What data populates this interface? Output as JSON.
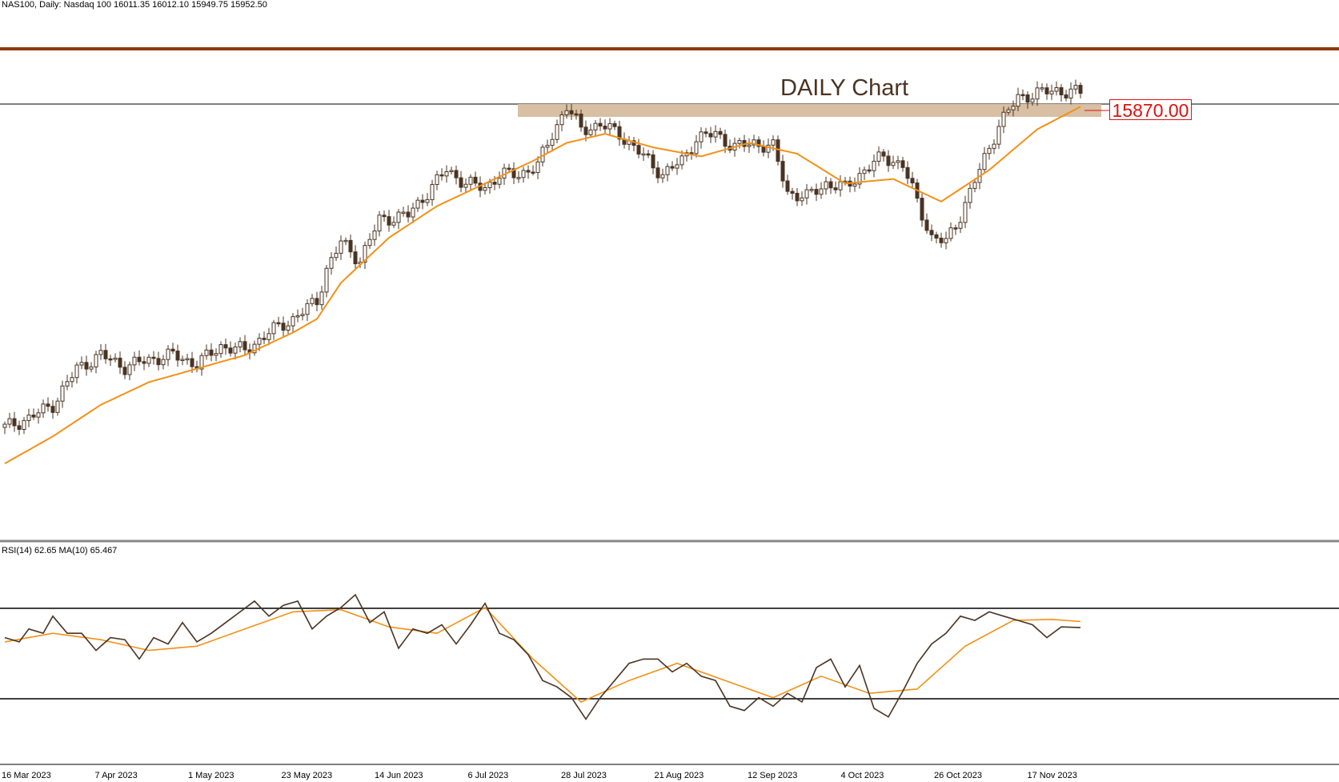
{
  "header": {
    "symbol_line": "NAS100, Daily:  Nasdaq 100  16011.35 16012.10 15949.75 15952.50"
  },
  "title": "DAILY Chart",
  "level": {
    "label": "15870.00",
    "value": 15870
  },
  "rsi": {
    "label": "RSI(14) 62.65 MA(10) 65.467"
  },
  "colors": {
    "resistance_line": "#8b3a0e",
    "zone": "#d9bfa3",
    "moving_average": "#f39016",
    "candle": "#4a3322",
    "level_label": "#e01010"
  },
  "chart_data": [
    {
      "type": "candlestick",
      "title": "DAILY Chart",
      "symbol": "NAS100",
      "timeframe": "Daily",
      "x_labels": [
        "16 Mar 2023",
        "7 Apr 2023",
        "1 May 2023",
        "23 May 2023",
        "14 Jun 2023",
        "6 Jul 2023",
        "28 Jul 2023",
        "21 Aug 2023",
        "12 Sep 2023",
        "4 Oct 2023",
        "26 Oct 2023",
        "17 Nov 2023"
      ],
      "key_level": 15870,
      "ylim": [
        11000,
        16450
      ],
      "close_path": [
        [
          0,
          12250
        ],
        [
          5,
          12350
        ],
        [
          10,
          12500
        ],
        [
          15,
          12900
        ],
        [
          20,
          13050
        ],
        [
          25,
          12920
        ],
        [
          30,
          13000
        ],
        [
          35,
          13050
        ],
        [
          40,
          12950
        ],
        [
          45,
          13150
        ],
        [
          50,
          13100
        ],
        [
          55,
          13300
        ],
        [
          60,
          13450
        ],
        [
          65,
          13650
        ],
        [
          67,
          14000
        ],
        [
          70,
          14300
        ],
        [
          74,
          14100
        ],
        [
          78,
          14550
        ],
        [
          84,
          14600
        ],
        [
          88,
          14850
        ],
        [
          92,
          15100
        ],
        [
          96,
          14950
        ],
        [
          100,
          14900
        ],
        [
          103,
          15050
        ],
        [
          107,
          15050
        ],
        [
          111,
          15150
        ],
        [
          114,
          15500
        ],
        [
          117,
          15800
        ],
        [
          120,
          15550
        ],
        [
          124,
          15600
        ],
        [
          128,
          15500
        ],
        [
          133,
          15250
        ],
        [
          137,
          15050
        ],
        [
          141,
          15200
        ],
        [
          144,
          15450
        ],
        [
          148,
          15500
        ],
        [
          152,
          15350
        ],
        [
          156,
          15400
        ],
        [
          160,
          15350
        ],
        [
          163,
          14850
        ],
        [
          167,
          14800
        ],
        [
          171,
          14950
        ],
        [
          175,
          14900
        ],
        [
          179,
          15100
        ],
        [
          183,
          15250
        ],
        [
          187,
          15150
        ],
        [
          190,
          14750
        ],
        [
          193,
          14350
        ],
        [
          196,
          14300
        ],
        [
          199,
          14600
        ],
        [
          203,
          15100
        ],
        [
          207,
          15600
        ],
        [
          211,
          15900
        ],
        [
          215,
          15950
        ],
        [
          219,
          15980
        ],
        [
          224,
          15952
        ]
      ],
      "moving_average": {
        "name": "MA",
        "points": [
          [
            0,
            11850
          ],
          [
            10,
            12150
          ],
          [
            20,
            12500
          ],
          [
            30,
            12750
          ],
          [
            40,
            12900
          ],
          [
            50,
            13050
          ],
          [
            60,
            13300
          ],
          [
            65,
            13450
          ],
          [
            70,
            13850
          ],
          [
            80,
            14350
          ],
          [
            90,
            14700
          ],
          [
            100,
            14950
          ],
          [
            110,
            15200
          ],
          [
            117,
            15400
          ],
          [
            125,
            15500
          ],
          [
            135,
            15350
          ],
          [
            145,
            15250
          ],
          [
            155,
            15400
          ],
          [
            165,
            15280
          ],
          [
            175,
            14950
          ],
          [
            185,
            15000
          ],
          [
            195,
            14750
          ],
          [
            205,
            15100
          ],
          [
            215,
            15550
          ],
          [
            224,
            15800
          ]
        ]
      }
    },
    {
      "type": "line",
      "title": "RSI(14) 62.65 MA(10) 65.467",
      "ylim": [
        0,
        100
      ],
      "levels": [
        70,
        30
      ],
      "series": [
        {
          "name": "RSI(14)",
          "points": [
            [
              0,
              58
            ],
            [
              3,
              56
            ],
            [
              5,
              62
            ],
            [
              8,
              60
            ],
            [
              10,
              68
            ],
            [
              13,
              60
            ],
            [
              16,
              60
            ],
            [
              19,
              52
            ],
            [
              22,
              58
            ],
            [
              25,
              57
            ],
            [
              28,
              48
            ],
            [
              31,
              58
            ],
            [
              34,
              55
            ],
            [
              37,
              65
            ],
            [
              40,
              56
            ],
            [
              43,
              60
            ],
            [
              46,
              65
            ],
            [
              49,
              70
            ],
            [
              52,
              75
            ],
            [
              55,
              68
            ],
            [
              58,
              73
            ],
            [
              61,
              75
            ],
            [
              64,
              62
            ],
            [
              67,
              68
            ],
            [
              70,
              72
            ],
            [
              73,
              78
            ],
            [
              76,
              65
            ],
            [
              79,
              70
            ],
            [
              82,
              53
            ],
            [
              85,
              62
            ],
            [
              88,
              60
            ],
            [
              91,
              64
            ],
            [
              94,
              55
            ],
            [
              97,
              64
            ],
            [
              100,
              74
            ],
            [
              103,
              60
            ],
            [
              106,
              57
            ],
            [
              109,
              50
            ],
            [
              112,
              38
            ],
            [
              115,
              35
            ],
            [
              118,
              30
            ],
            [
              121,
              20
            ],
            [
              124,
              30
            ],
            [
              127,
              38
            ],
            [
              130,
              46
            ],
            [
              133,
              48
            ],
            [
              136,
              48
            ],
            [
              139,
              42
            ],
            [
              142,
              46
            ],
            [
              145,
              40
            ],
            [
              148,
              38
            ],
            [
              151,
              26
            ],
            [
              154,
              24
            ],
            [
              157,
              30
            ],
            [
              160,
              26
            ],
            [
              163,
              32
            ],
            [
              166,
              28
            ],
            [
              169,
              44
            ],
            [
              172,
              48
            ],
            [
              175,
              35
            ],
            [
              178,
              45
            ],
            [
              181,
              25
            ],
            [
              184,
              21
            ],
            [
              187,
              33
            ],
            [
              190,
              46
            ],
            [
              193,
              55
            ],
            [
              196,
              60
            ],
            [
              199,
              68
            ],
            [
              202,
              66
            ],
            [
              205,
              70
            ],
            [
              208,
              68
            ],
            [
              211,
              66
            ],
            [
              214,
              64
            ],
            [
              217,
              58
            ],
            [
              220,
              63
            ],
            [
              224,
              62.65
            ]
          ]
        },
        {
          "name": "MA(10)",
          "points": [
            [
              0,
              56
            ],
            [
              10,
              60
            ],
            [
              20,
              57
            ],
            [
              30,
              52
            ],
            [
              40,
              54
            ],
            [
              50,
              62
            ],
            [
              60,
              70
            ],
            [
              70,
              71
            ],
            [
              80,
              63
            ],
            [
              90,
              60
            ],
            [
              100,
              72
            ],
            [
              110,
              48
            ],
            [
              120,
              28
            ],
            [
              130,
              38
            ],
            [
              140,
              46
            ],
            [
              150,
              38
            ],
            [
              160,
              30
            ],
            [
              170,
              40
            ],
            [
              180,
              32
            ],
            [
              190,
              34
            ],
            [
              200,
              54
            ],
            [
              210,
              66
            ],
            [
              218,
              66.5
            ],
            [
              224,
              65.467
            ]
          ]
        }
      ]
    }
  ],
  "x_axis": {
    "labels": [
      "16 Mar 2023",
      "7 Apr 2023",
      "1 May 2023",
      "23 May 2023",
      "14 Jun 2023",
      "6 Jul 2023",
      "28 Jul 2023",
      "21 Aug 2023",
      "12 Sep 2023",
      "4 Oct 2023",
      "26 Oct 2023",
      "17 Nov 2023"
    ]
  }
}
